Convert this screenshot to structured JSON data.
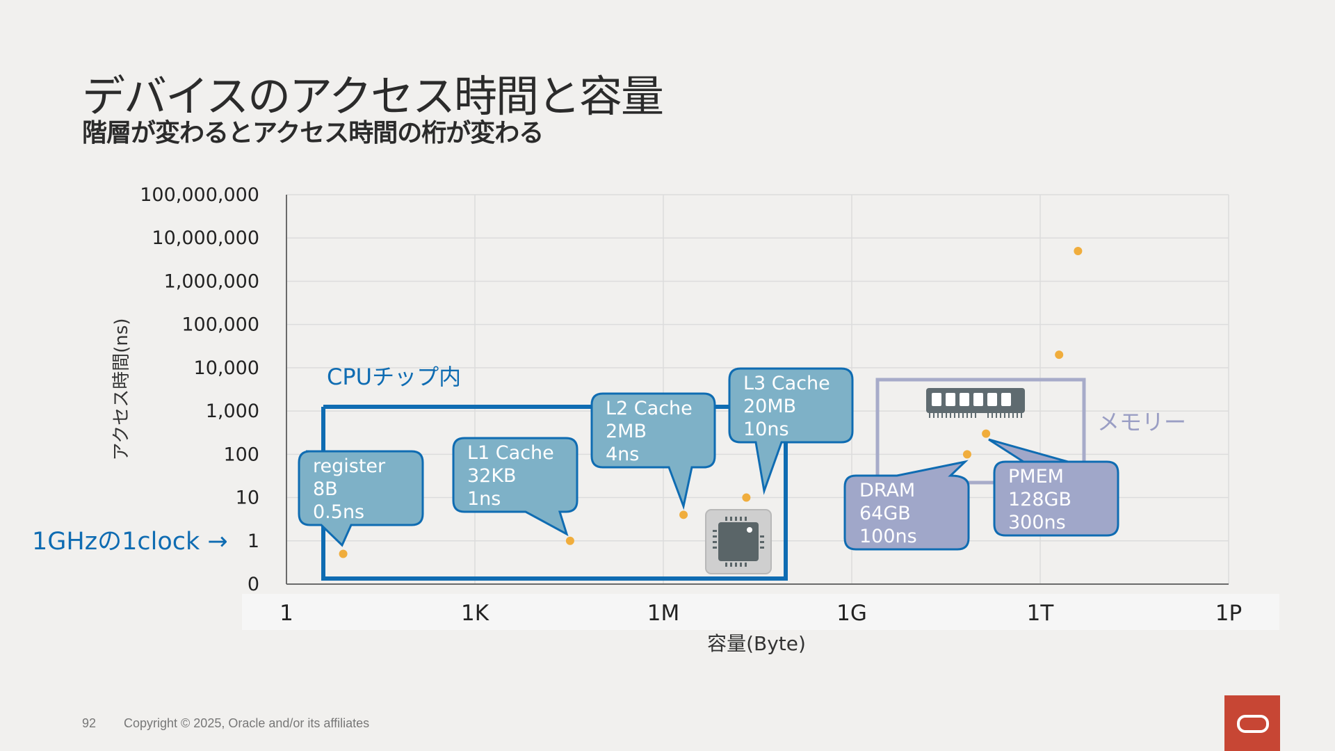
{
  "slide": {
    "title": "デバイスのアクセス時間と容量",
    "subtitle": "階層が変わるとアクセス時間の桁が変わる",
    "page_number": "92",
    "copyright": "Copyright © 2025, Oracle and/or its affiliates"
  },
  "colors": {
    "background": "#f1f0ee",
    "point": "#f0ad3c",
    "cpu_box": "#0f6cb2",
    "cpu_callout_fill": "#7eb1c7",
    "memory_box": "#a7abc9",
    "memory_callout_fill": "#a0a7c9",
    "memory_label": "#9a9ec4",
    "oracle_red": "#c74634"
  },
  "chart_data": {
    "type": "scatter",
    "xlabel": "容量(Byte)",
    "ylabel": "アクセス時間(ns)",
    "x_ticks": [
      "1",
      "1K",
      "1M",
      "1G",
      "1T",
      "1P"
    ],
    "y_ticks": [
      "0",
      "1",
      "10",
      "100",
      "1,000",
      "10,000",
      "100,000",
      "1,000,000",
      "10,000,000",
      "100,000,000"
    ],
    "x_scale": "log",
    "y_scale": "log",
    "grid": true,
    "points": [
      {
        "x": 8,
        "y": 0.5
      },
      {
        "x": 32768,
        "y": 1
      },
      {
        "x": 2097152,
        "y": 4
      },
      {
        "x": 20971520,
        "y": 10
      },
      {
        "x": 68719476736,
        "y": 100
      },
      {
        "x": 137438953472,
        "y": 300
      },
      {
        "x": 2000000000000,
        "y": 20000
      },
      {
        "x": 4000000000000,
        "y": 5000000
      }
    ],
    "annotations": {
      "clock_label": "1GHzの1clock →",
      "cpu_group_label": "CPUチップ内",
      "memory_group_label": "メモリー",
      "callouts": [
        {
          "name": "register",
          "line1": "register",
          "line2": "8B",
          "line3": "0.5ns"
        },
        {
          "name": "l1",
          "line1": "L1 Cache",
          "line2": "32KB",
          "line3": "1ns"
        },
        {
          "name": "l2",
          "line1": "L2 Cache",
          "line2": "2MB",
          "line3": "4ns"
        },
        {
          "name": "l3",
          "line1": "L3 Cache",
          "line2": "20MB",
          "line3": "10ns"
        },
        {
          "name": "dram",
          "line1": "DRAM",
          "line2": "64GB",
          "line3": "100ns"
        },
        {
          "name": "pmem",
          "line1": "PMEM",
          "line2": "128GB",
          "line3": "300ns"
        }
      ]
    }
  }
}
